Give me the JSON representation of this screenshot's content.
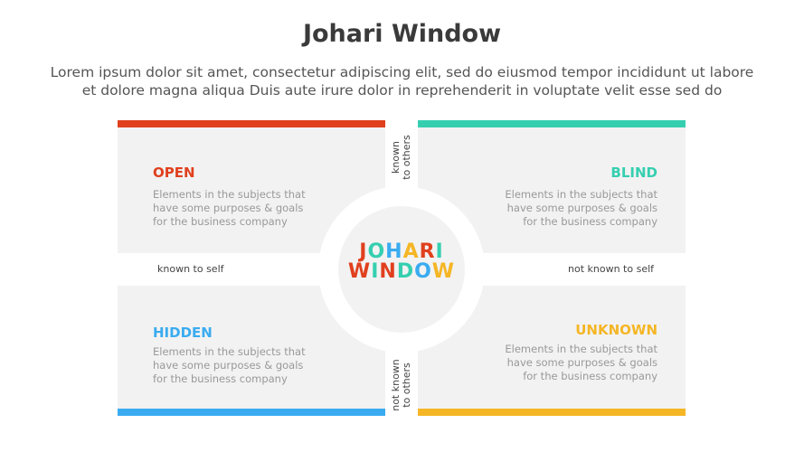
{
  "title": "Johari Window",
  "subtitle_lines": [
    "Lorem ipsum dolor sit amet, consectetur adipiscing elit, sed do eiusmod tempor incididunt ut labore",
    "et dolore magna aliqua Duis aute irure dolor in reprehenderit in voluptate velit esse sed do"
  ],
  "quadrants": [
    {
      "heading": "OPEN",
      "color": "#e0401e",
      "text": [
        "Elements in the subjects that",
        "have  some purposes & goals",
        "for the  business company"
      ]
    },
    {
      "heading": "BLIND",
      "color": "#35cfb0",
      "text": [
        "Elements in the subjects that",
        "have  some purposes & goals",
        "for the  business company"
      ]
    },
    {
      "heading": "HIDDEN",
      "color": "#3aabf0",
      "text": [
        "Elements in the subjects that",
        "have  some purposes & goals",
        "for the  business company"
      ]
    },
    {
      "heading": "UNKNOWN",
      "color": "#f5b625",
      "text": [
        "Elements in the subjects that",
        "have  some purposes & goals",
        "for the  business company"
      ]
    }
  ],
  "center": {
    "line1": "JOHARI",
    "line2": "WINDOW"
  },
  "axis": {
    "known_to_others": [
      "known",
      "to others"
    ],
    "not_known_to_others": [
      "not known",
      "to others"
    ],
    "known_to_self": "known to self",
    "not_known_to_self": "not known to self"
  }
}
